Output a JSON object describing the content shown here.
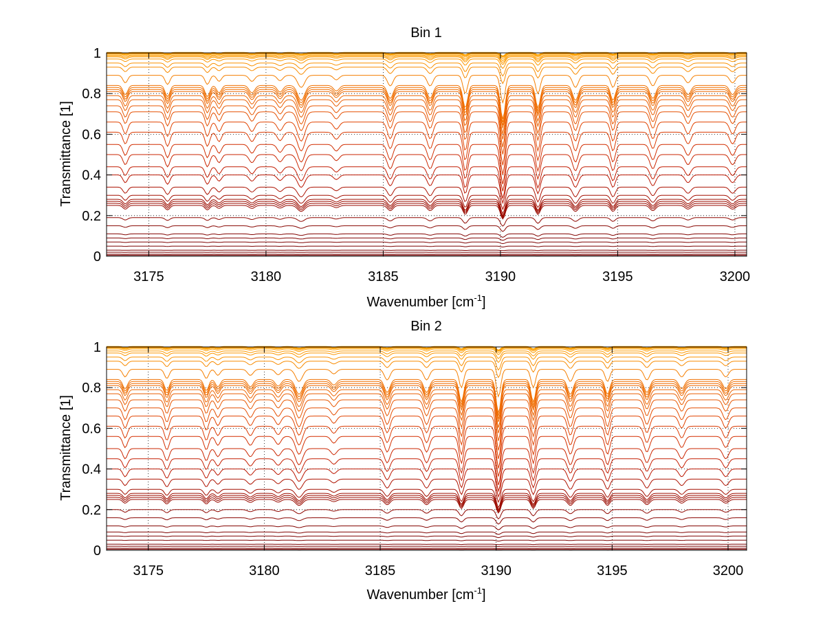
{
  "chart_data": [
    {
      "type": "line",
      "title": "Bin 1",
      "xlabel": "Wavenumber [cm",
      "xlabel_sup": "-1",
      "xlabel_end": "]",
      "ylabel": "Transmittance [1]",
      "xlim": [
        3173.2,
        3200.5
      ],
      "ylim": [
        0,
        1
      ],
      "xticks": [
        3175,
        3180,
        3185,
        3190,
        3195,
        3200
      ],
      "yticks": [
        0,
        0.2,
        0.4,
        0.6,
        0.8,
        1
      ],
      "ytick_labels": [
        "0",
        "0.2",
        "0.4",
        "0.6",
        "0.8",
        "1"
      ],
      "grid": "dotted",
      "colormap": [
        "#7a0000",
        "#c01800",
        "#e04000",
        "#f07000",
        "#ffa000"
      ],
      "absorption_lines": [
        {
          "x": 3174.0,
          "depth": 0.25,
          "width": 0.1
        },
        {
          "x": 3175.8,
          "depth": 0.3,
          "width": 0.1
        },
        {
          "x": 3177.5,
          "depth": 0.3,
          "width": 0.1
        },
        {
          "x": 3178.0,
          "depth": 0.2,
          "width": 0.1
        },
        {
          "x": 3179.4,
          "depth": 0.2,
          "width": 0.12
        },
        {
          "x": 3180.6,
          "depth": 0.18,
          "width": 0.12
        },
        {
          "x": 3181.5,
          "depth": 0.4,
          "width": 0.15
        },
        {
          "x": 3183.0,
          "depth": 0.15,
          "width": 0.12
        },
        {
          "x": 3185.3,
          "depth": 0.35,
          "width": 0.12
        },
        {
          "x": 3187.0,
          "depth": 0.35,
          "width": 0.12
        },
        {
          "x": 3188.5,
          "depth": 0.6,
          "width": 0.1
        },
        {
          "x": 3190.1,
          "depth": 0.9,
          "width": 0.1
        },
        {
          "x": 3191.6,
          "depth": 0.6,
          "width": 0.1
        },
        {
          "x": 3193.2,
          "depth": 0.4,
          "width": 0.12
        },
        {
          "x": 3194.8,
          "depth": 0.4,
          "width": 0.1
        },
        {
          "x": 3196.5,
          "depth": 0.35,
          "width": 0.12
        },
        {
          "x": 3198.0,
          "depth": 0.25,
          "width": 0.12
        },
        {
          "x": 3199.9,
          "depth": 0.25,
          "width": 0.12
        }
      ],
      "series_baselines": [
        1.0,
        0.995,
        0.99,
        0.985,
        0.98,
        0.97,
        0.95,
        0.93,
        0.89,
        0.84,
        0.83,
        0.82,
        0.81,
        0.79,
        0.77,
        0.74,
        0.71,
        0.66,
        0.61,
        0.55,
        0.5,
        0.44,
        0.4,
        0.34,
        0.3,
        0.28,
        0.27,
        0.26,
        0.25,
        0.19,
        0.15,
        0.11,
        0.09,
        0.07,
        0.05,
        0.03,
        0.02,
        0.01,
        0.005,
        0.0
      ]
    },
    {
      "type": "line",
      "title": "Bin 2",
      "xlabel": "Wavenumber [cm",
      "xlabel_sup": "-1",
      "xlabel_end": "]",
      "ylabel": "Transmittance [1]",
      "xlim": [
        3173.2,
        3200.8
      ],
      "ylim": [
        0,
        1
      ],
      "xticks": [
        3175,
        3180,
        3185,
        3190,
        3195,
        3200
      ],
      "yticks": [
        0,
        0.2,
        0.4,
        0.6,
        0.8,
        1
      ],
      "ytick_labels": [
        "0",
        "0.2",
        "0.4",
        "0.6",
        "0.8",
        "1"
      ],
      "grid": "dotted",
      "colormap": [
        "#7a0000",
        "#c01800",
        "#e04000",
        "#f07000",
        "#ffa000"
      ],
      "absorption_lines": [
        {
          "x": 3174.0,
          "depth": 0.25,
          "width": 0.1
        },
        {
          "x": 3175.8,
          "depth": 0.3,
          "width": 0.1
        },
        {
          "x": 3177.5,
          "depth": 0.3,
          "width": 0.1
        },
        {
          "x": 3178.0,
          "depth": 0.2,
          "width": 0.1
        },
        {
          "x": 3179.4,
          "depth": 0.2,
          "width": 0.12
        },
        {
          "x": 3180.6,
          "depth": 0.18,
          "width": 0.12
        },
        {
          "x": 3181.5,
          "depth": 0.4,
          "width": 0.15
        },
        {
          "x": 3183.0,
          "depth": 0.15,
          "width": 0.12
        },
        {
          "x": 3185.3,
          "depth": 0.35,
          "width": 0.12
        },
        {
          "x": 3187.0,
          "depth": 0.35,
          "width": 0.12
        },
        {
          "x": 3188.5,
          "depth": 0.6,
          "width": 0.1
        },
        {
          "x": 3190.1,
          "depth": 0.9,
          "width": 0.1
        },
        {
          "x": 3191.6,
          "depth": 0.6,
          "width": 0.1
        },
        {
          "x": 3193.2,
          "depth": 0.4,
          "width": 0.12
        },
        {
          "x": 3194.8,
          "depth": 0.4,
          "width": 0.1
        },
        {
          "x": 3196.5,
          "depth": 0.35,
          "width": 0.12
        },
        {
          "x": 3198.0,
          "depth": 0.25,
          "width": 0.12
        },
        {
          "x": 3199.9,
          "depth": 0.25,
          "width": 0.12
        }
      ],
      "series_baselines": [
        1.0,
        0.995,
        0.99,
        0.98,
        0.97,
        0.95,
        0.93,
        0.89,
        0.84,
        0.83,
        0.82,
        0.81,
        0.79,
        0.77,
        0.74,
        0.7,
        0.66,
        0.61,
        0.56,
        0.5,
        0.45,
        0.4,
        0.35,
        0.3,
        0.28,
        0.27,
        0.26,
        0.25,
        0.2,
        0.16,
        0.12,
        0.09,
        0.07,
        0.05,
        0.03,
        0.02,
        0.01,
        0.005,
        0.0
      ]
    }
  ]
}
